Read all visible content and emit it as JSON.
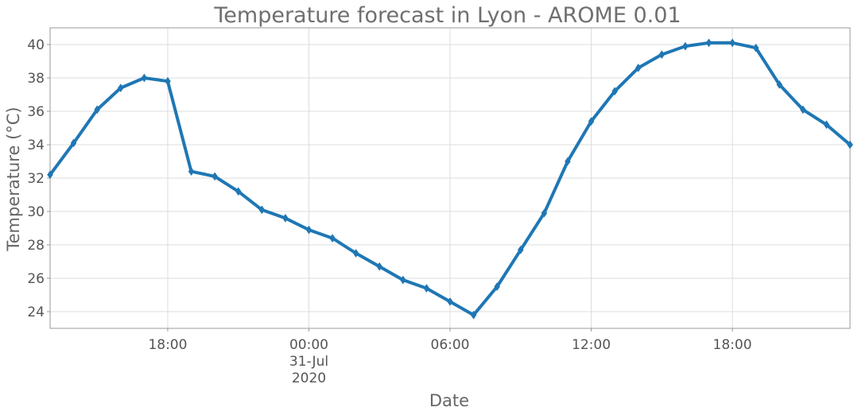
{
  "chart_data": {
    "type": "line",
    "title": "Temperature forecast in Lyon - AROME 0.01",
    "xlabel": "Date",
    "ylabel": "Temperature (°C)",
    "xlim": [
      "2020-07-30T13:00",
      "2020-07-31T23:00"
    ],
    "ylim": [
      23,
      41
    ],
    "yticks": [
      24,
      26,
      28,
      30,
      32,
      34,
      36,
      38,
      40
    ],
    "xticks": [
      {
        "t": "2020-07-30T18:00",
        "lines": [
          "18:00"
        ]
      },
      {
        "t": "2020-07-31T00:00",
        "lines": [
          "00:00",
          "31-Jul",
          "2020"
        ]
      },
      {
        "t": "2020-07-31T06:00",
        "lines": [
          "06:00"
        ]
      },
      {
        "t": "2020-07-31T12:00",
        "lines": [
          "12:00"
        ]
      },
      {
        "t": "2020-07-31T18:00",
        "lines": [
          "18:00"
        ]
      }
    ],
    "grid": true,
    "color": "#1f77b4",
    "series": [
      {
        "x": [
          "2020-07-30T13:00",
          "2020-07-30T14:00",
          "2020-07-30T15:00",
          "2020-07-30T16:00",
          "2020-07-30T17:00",
          "2020-07-30T18:00",
          "2020-07-30T19:00",
          "2020-07-30T20:00",
          "2020-07-30T21:00",
          "2020-07-30T22:00",
          "2020-07-30T23:00",
          "2020-07-31T00:00",
          "2020-07-31T01:00",
          "2020-07-31T02:00",
          "2020-07-31T03:00",
          "2020-07-31T04:00",
          "2020-07-31T05:00",
          "2020-07-31T06:00",
          "2020-07-31T07:00",
          "2020-07-31T08:00",
          "2020-07-31T09:00",
          "2020-07-31T10:00",
          "2020-07-31T11:00",
          "2020-07-31T12:00",
          "2020-07-31T13:00",
          "2020-07-31T14:00",
          "2020-07-31T15:00",
          "2020-07-31T16:00",
          "2020-07-31T17:00",
          "2020-07-31T18:00",
          "2020-07-31T19:00",
          "2020-07-31T20:00",
          "2020-07-31T21:00",
          "2020-07-31T22:00",
          "2020-07-31T23:00"
        ],
        "y": [
          32.2,
          34.1,
          36.1,
          37.4,
          38.0,
          37.8,
          32.4,
          32.1,
          31.2,
          30.1,
          29.6,
          28.9,
          28.4,
          27.5,
          26.7,
          25.9,
          25.4,
          24.6,
          23.8,
          25.5,
          27.7,
          29.9,
          33.0,
          35.4,
          37.2,
          38.6,
          39.4,
          39.9,
          40.1,
          40.1,
          39.8,
          37.6,
          36.1,
          35.2,
          34.0
        ]
      }
    ]
  }
}
